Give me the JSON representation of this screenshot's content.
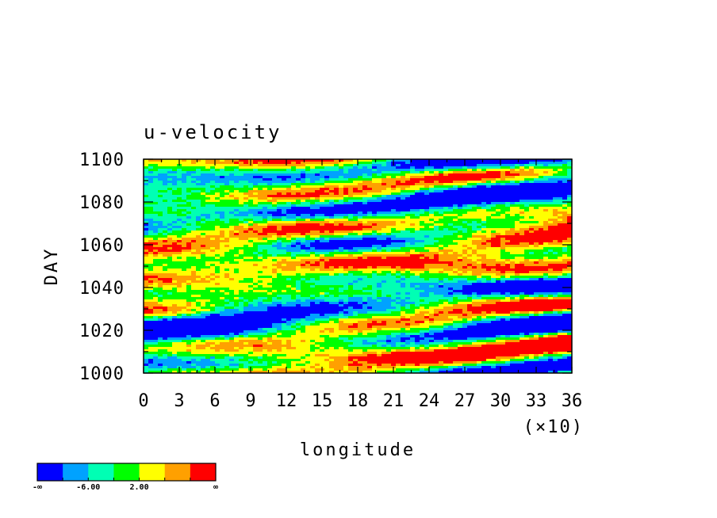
{
  "chart_data": {
    "type": "heatmap",
    "title": "u-velocity",
    "xlabel": "longitude",
    "ylabel": "DAY",
    "x_tick_labels": [
      "0",
      "3",
      "6",
      "9",
      "12",
      "15",
      "18",
      "21",
      "24",
      "27",
      "30",
      "33",
      "36"
    ],
    "x_multiplier_label": "(×10)",
    "x_range": [
      0,
      360
    ],
    "y_tick_labels": [
      "1000",
      "1020",
      "1040",
      "1060",
      "1080",
      "1100"
    ],
    "y_range": [
      1000,
      1100
    ],
    "colorbar": {
      "colors": [
        "#0000ff",
        "#00a2ff",
        "#00ffb4",
        "#00ff00",
        "#ffff00",
        "#ffa000",
        "#ff0000"
      ],
      "tick_labels": [
        "-∞",
        "-6.00",
        "2.00",
        "∞"
      ]
    },
    "field_description_values": "noisy zonal-velocity field; values span all seven color bins"
  }
}
